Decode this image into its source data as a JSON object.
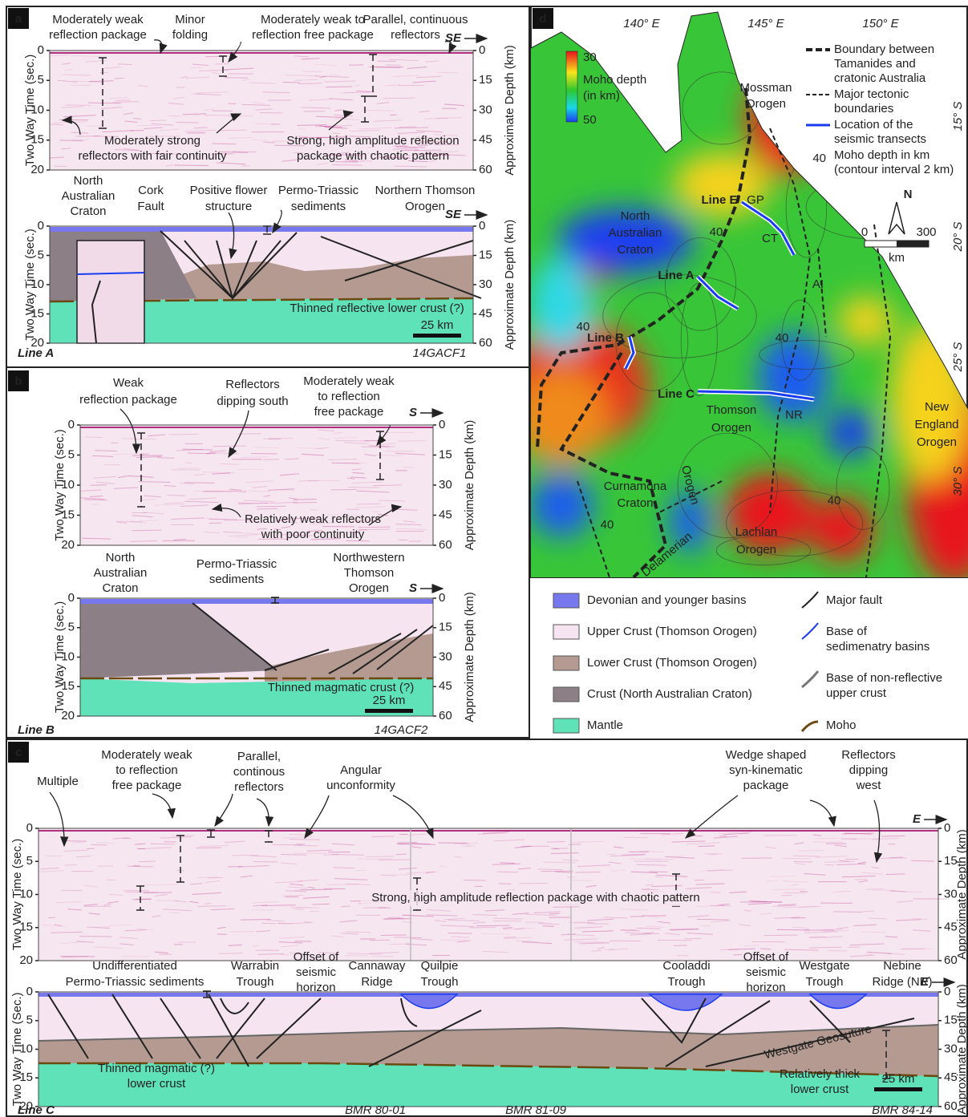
{
  "panel_a": {
    "label": "a",
    "seismic": {
      "annotations": {
        "weak_package": [
          "Moderately weak",
          "reflection package"
        ],
        "folding": [
          "Minor",
          "folding"
        ],
        "weak_to_free": [
          "Moderately weak to",
          "reflection free package"
        ],
        "parallel": [
          "Parallel, continuous",
          "reflectors"
        ],
        "fair_continuity": [
          "Moderately strong",
          "reflectors with fair continuity"
        ],
        "chaotic": [
          "Strong, high amplitude reflection",
          "package with chaotic pattern"
        ]
      },
      "direction": "SE",
      "time_axis": {
        "title": "Two Way Time (sec.)",
        "ticks": [
          0,
          5,
          10,
          15,
          20
        ]
      },
      "depth_axis": {
        "title": "Approximate Depth (km)",
        "ticks": [
          0,
          15,
          30,
          45,
          60
        ]
      }
    },
    "interpretation": {
      "annotations": {
        "craton": [
          "North",
          "Australian",
          "Craton"
        ],
        "fault": [
          "Cork",
          "Fault"
        ],
        "flower": [
          "Positive flower",
          "structure"
        ],
        "sediments": [
          "Permo-Triassic",
          "sediments"
        ],
        "orogen": [
          "Northern Thomson",
          "Orogen"
        ],
        "lower_crust": "Thinned reflective lower crust (?)"
      },
      "direction": "SE",
      "scale": "25 km",
      "time_axis": {
        "title": "Two Way Time (sec.)",
        "ticks": [
          0,
          5,
          10,
          15,
          20
        ]
      },
      "depth_axis": {
        "title": "Approximate Depth (km)",
        "ticks": [
          0,
          15,
          30,
          45,
          60
        ]
      }
    },
    "line": "Line A",
    "survey": "14GACF1"
  },
  "panel_b": {
    "label": "b",
    "seismic": {
      "annotations": {
        "weak_package": [
          "Weak",
          "reflection package"
        ],
        "dipping": [
          "Reflectors",
          "dipping south"
        ],
        "weak_to_free": [
          "Moderately weak",
          "to reflection",
          "free package"
        ],
        "poor_continuity": [
          "Relatively weak reflectors",
          "with poor continuity"
        ]
      },
      "direction": "S",
      "time_axis": {
        "title": "Two Way Time (sec.)",
        "ticks": [
          0,
          5,
          10,
          15,
          20
        ]
      },
      "depth_axis": {
        "title": "Approximate Depth (km)",
        "ticks": [
          0,
          15,
          30,
          45,
          60
        ]
      }
    },
    "interpretation": {
      "annotations": {
        "craton": [
          "North",
          "Australian",
          "Craton"
        ],
        "sediments": [
          "Permo-Triassic",
          "sediments"
        ],
        "orogen": [
          "Northwestern",
          "Thomson",
          "Orogen"
        ],
        "magmatic_crust": "Thinned magmatic crust (?)"
      },
      "direction": "S",
      "scale": "25 km",
      "time_axis": {
        "title": "Two Way Time (sec.)",
        "ticks": [
          0,
          5,
          10,
          15,
          20
        ]
      },
      "depth_axis": {
        "title": "Approximate Depth (km)",
        "ticks": [
          0,
          15,
          30,
          45,
          60
        ]
      }
    },
    "line": "Line B",
    "survey": "14GACF2"
  },
  "panel_c": {
    "label": "c",
    "seismic": {
      "annotations": {
        "multiple": "Multiple",
        "weak_to_free": [
          "Moderately weak",
          "to reflection",
          "free package"
        ],
        "parallel": [
          "Parallel,",
          "continous",
          "reflectors"
        ],
        "unconformity": [
          "Angular",
          "unconformity"
        ],
        "wedge": [
          "Wedge shaped",
          "syn-kinematic",
          "package"
        ],
        "dipping": [
          "Reflectors",
          "dipping",
          "west"
        ],
        "chaotic": "Strong, high amplitude reflection package with chaotic pattern"
      },
      "direction": "E",
      "time_axis": {
        "title": "Two Way Time (sec.)",
        "ticks": [
          0,
          5,
          10,
          15,
          20
        ]
      },
      "depth_axis": {
        "title": "Approximate Depth (km)",
        "ticks": [
          0,
          15,
          30,
          45,
          60
        ]
      }
    },
    "interpretation": {
      "annotations": {
        "sediments": [
          "Undifferentiated",
          "Permo-Triassic sediments"
        ],
        "warrabin": [
          "Warrabin",
          "Trough"
        ],
        "offset_1": [
          "Offset of",
          "seismic",
          "horizon"
        ],
        "cannaway": [
          "Cannaway",
          "Ridge"
        ],
        "quilpie": [
          "Quilpie",
          "Trough"
        ],
        "cooladdi": [
          "Cooladdi",
          "Trough"
        ],
        "offset_2": [
          "Offset of",
          "seismic",
          "horizon"
        ],
        "westgate": [
          "Westgate",
          "Trough"
        ],
        "nebine": [
          "Nebine",
          "Ridge (NR)"
        ],
        "geosuture": "Westgate Geosuture",
        "magmatic": [
          "Thinned magmatic (?)",
          "lower crust"
        ],
        "thick": [
          "Relatively thick",
          "lower crust"
        ]
      },
      "direction": "E",
      "scale": "25 km",
      "time_axis": {
        "title": "Two Way Time (Sec.)",
        "ticks": [
          0,
          5,
          10,
          15,
          20
        ]
      },
      "depth_axis": {
        "title": "Approximate Depth (km)",
        "ticks": [
          0,
          15,
          30,
          45,
          60
        ]
      }
    },
    "line": "Line C",
    "surveys": [
      "BMR 80-01",
      "BMR 81-09",
      "BMR 84-14"
    ]
  },
  "panel_d": {
    "label": "d",
    "longitudes": [
      "140° E",
      "145° E",
      "150° E"
    ],
    "latitudes": [
      "15° S",
      "20° S",
      "25° S",
      "30° S"
    ],
    "colorbar": {
      "title": [
        "Moho depth",
        "(in km)"
      ],
      "range": [
        30,
        50
      ]
    },
    "key": {
      "tamanides": [
        "Boundary between",
        "Tamanides and",
        "cratonic Australia"
      ],
      "tectonic": [
        "Major tectonic",
        "boundaries"
      ],
      "transects": [
        "Location of the",
        "seismic transects"
      ],
      "contour_sample": 40,
      "contour": [
        "Moho depth in km",
        "(contour interval 2 km)"
      ]
    },
    "north": "N",
    "scale": {
      "ticks": [
        0,
        300
      ],
      "unit": "km"
    },
    "regions": {
      "mossman": [
        "Mossman",
        "Orogen"
      ],
      "craton": [
        "North",
        "Australian",
        "Craton"
      ],
      "thomson": [
        "Thomson",
        "Orogen"
      ],
      "new_england": [
        "New",
        "England",
        "Orogen"
      ],
      "curnamona": [
        "Curnamona",
        "Craton"
      ],
      "delamerian": "Delamerian",
      "delamerian_orogen": "Orogen",
      "lachlan": [
        "Lachlan",
        "Orogen"
      ]
    },
    "features": {
      "line_e": "Line E",
      "gp": "GP",
      "ct": "CT",
      "line_a": "Line A",
      "ai": "AI",
      "line_b": "Line B",
      "line_c": "Line C",
      "nr": "NR"
    },
    "contour_labels": [
      40,
      40,
      40,
      40,
      40
    ]
  },
  "legend": {
    "devonian": "Devonian and younger basins",
    "upper_crust": "Upper Crust (Thomson Orogen)",
    "lower_crust": "Lower Crust (Thomson Orogen)",
    "craton_crust": "Crust (North Australian Craton)",
    "mantle": "Mantle",
    "fault": "Major fault",
    "basin_base": [
      "Base of",
      "sedimenatry basins"
    ],
    "nonreflective_base": [
      "Base of non-reflective",
      "upper crust"
    ],
    "moho": "Moho"
  }
}
